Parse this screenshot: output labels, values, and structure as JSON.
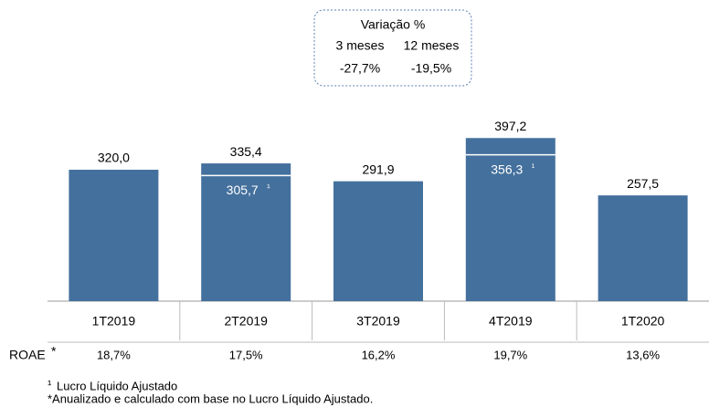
{
  "chart_data": {
    "type": "bar",
    "categories": [
      "1T2019",
      "2T2019",
      "3T2019",
      "4T2019",
      "1T2020"
    ],
    "values": [
      320.0,
      335.4,
      291.9,
      397.2,
      257.5
    ],
    "value_labels": [
      "320,0",
      "335,4",
      "291,9",
      "397,2",
      "257,5"
    ],
    "color": "#44709d",
    "adjusted": {
      "values": [
        null,
        305.7,
        null,
        356.3,
        null
      ],
      "value_labels": [
        null,
        "305,7",
        null,
        "356,3",
        null
      ],
      "marker": "¹"
    },
    "variation": {
      "title": "Variação %",
      "headers": [
        "3 meses",
        "12 meses"
      ],
      "values": [
        -27.7,
        -19.5
      ],
      "value_labels": [
        "-27,7%",
        "-19,5%"
      ]
    },
    "roae": {
      "label": "ROAE",
      "marker": "*",
      "values": [
        18.7,
        17.5,
        16.2,
        19.7,
        13.6
      ],
      "value_labels": [
        "18,7%",
        "17,5%",
        "16,2%",
        "19,7%",
        "13,6%"
      ]
    },
    "footnotes": [
      {
        "marker": "¹",
        "text": "Lucro Líquido Ajustado"
      },
      {
        "text": "*Anualizado e calculado com base no Lucro Líquido Ajustado."
      }
    ]
  }
}
